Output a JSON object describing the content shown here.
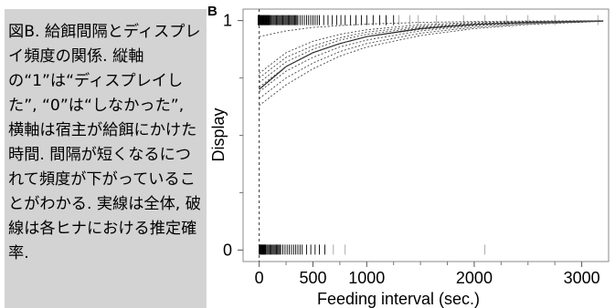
{
  "caption": {
    "text": "図B. 給餌間隔とディスプレイ頻度の関係. 縦軸の“1”は“ディスプレイした”, “0”は“しなかった”, 横軸は宿主が給餌にかけた時間. 間隔が短くなるにつれて頻度が下がっていることがわかる. 実線は全体, 破線は各ヒナにおける推定確率.",
    "background_color": "#d3d3d3"
  },
  "chart_data": {
    "type": "line",
    "panel_label": "B",
    "xlabel": "Feeding interval (sec.)",
    "ylabel": "Display",
    "x_ticks": [
      0,
      500,
      1000,
      2000,
      3000
    ],
    "x_minor_ticks": [
      250,
      750,
      1250,
      1500,
      1750,
      2250,
      2500,
      2750
    ],
    "y_ticks": [
      0,
      1
    ],
    "y_minor_ticks": [
      0.25,
      0.5,
      0.75
    ],
    "xlim": [
      -150,
      3250
    ],
    "ylim": [
      -0.05,
      1.05
    ],
    "reference_line": {
      "x": 0,
      "style": "dashed"
    },
    "series": [
      {
        "style": "solid",
        "x": [
          0,
          250,
          500,
          750,
          1000,
          1500,
          2000,
          2500,
          3000,
          3200
        ],
        "y": [
          0.7,
          0.8,
          0.86,
          0.9,
          0.93,
          0.965,
          0.983,
          0.992,
          0.997,
          0.998
        ]
      },
      {
        "style": "dashed",
        "x": [
          0,
          250,
          500,
          750,
          1000,
          1500,
          2000,
          2500,
          3000,
          3200
        ],
        "y": [
          0.93,
          0.955,
          0.97,
          0.978,
          0.985,
          0.992,
          0.996,
          0.998,
          0.999,
          0.999
        ]
      },
      {
        "style": "dashed",
        "x": [
          0,
          250,
          500,
          750,
          1000,
          1500,
          2000,
          2500,
          3000,
          3200
        ],
        "y": [
          0.77,
          0.86,
          0.91,
          0.94,
          0.96,
          0.982,
          0.992,
          0.996,
          0.998,
          0.999
        ]
      },
      {
        "style": "dashed",
        "x": [
          0,
          250,
          500,
          750,
          1000,
          1500,
          2000,
          2500,
          3000,
          3200
        ],
        "y": [
          0.75,
          0.84,
          0.89,
          0.925,
          0.95,
          0.975,
          0.988,
          0.995,
          0.998,
          0.999
        ]
      },
      {
        "style": "dashed",
        "x": [
          0,
          250,
          500,
          750,
          1000,
          1500,
          2000,
          2500,
          3000,
          3200
        ],
        "y": [
          0.73,
          0.82,
          0.875,
          0.915,
          0.94,
          0.97,
          0.985,
          0.993,
          0.997,
          0.998
        ]
      },
      {
        "style": "dashed",
        "x": [
          0,
          250,
          500,
          750,
          1000,
          1500,
          2000,
          2500,
          3000,
          3200
        ],
        "y": [
          0.71,
          0.8,
          0.86,
          0.9,
          0.93,
          0.962,
          0.981,
          0.991,
          0.996,
          0.998
        ]
      },
      {
        "style": "dashed",
        "x": [
          0,
          250,
          500,
          750,
          1000,
          1500,
          2000,
          2500,
          3000,
          3200
        ],
        "y": [
          0.69,
          0.78,
          0.84,
          0.885,
          0.915,
          0.955,
          0.977,
          0.989,
          0.995,
          0.998
        ]
      },
      {
        "style": "dashed",
        "x": [
          0,
          250,
          500,
          750,
          1000,
          1500,
          2000,
          2500,
          3000,
          3200
        ],
        "y": [
          0.66,
          0.75,
          0.815,
          0.865,
          0.9,
          0.945,
          0.971,
          0.986,
          0.994,
          0.997
        ]
      },
      {
        "style": "dashed",
        "x": [
          0,
          250,
          500,
          750,
          1000,
          1500,
          2000,
          2500,
          3000,
          3200
        ],
        "y": [
          0.63,
          0.72,
          0.79,
          0.845,
          0.885,
          0.935,
          0.965,
          0.983,
          0.993,
          0.997
        ]
      }
    ],
    "rug_display_1": [
      -10,
      -8,
      -5,
      -3,
      0,
      5,
      10,
      15,
      20,
      25,
      30,
      35,
      40,
      45,
      50,
      55,
      60,
      65,
      70,
      75,
      80,
      85,
      90,
      95,
      100,
      110,
      120,
      130,
      140,
      150,
      160,
      170,
      180,
      190,
      200,
      210,
      220,
      230,
      240,
      250,
      260,
      270,
      280,
      290,
      300,
      310,
      320,
      330,
      340,
      350,
      360,
      380,
      400,
      420,
      440,
      460,
      480,
      500,
      520,
      540,
      560,
      600,
      640,
      680,
      720,
      760,
      800,
      850,
      900,
      950,
      1000,
      1060,
      1120,
      1180,
      1250,
      1300,
      1400,
      1480,
      1650,
      1900,
      2100,
      2300,
      2500,
      2750,
      3150
    ],
    "rug_display_0": [
      0,
      5,
      10,
      15,
      20,
      25,
      30,
      35,
      40,
      45,
      50,
      55,
      60,
      70,
      80,
      90,
      100,
      110,
      120,
      130,
      140,
      150,
      160,
      170,
      180,
      190,
      200,
      220,
      240,
      260,
      280,
      300,
      320,
      340,
      360,
      380,
      400,
      440,
      480,
      520,
      560,
      610,
      690,
      800,
      2100
    ]
  }
}
